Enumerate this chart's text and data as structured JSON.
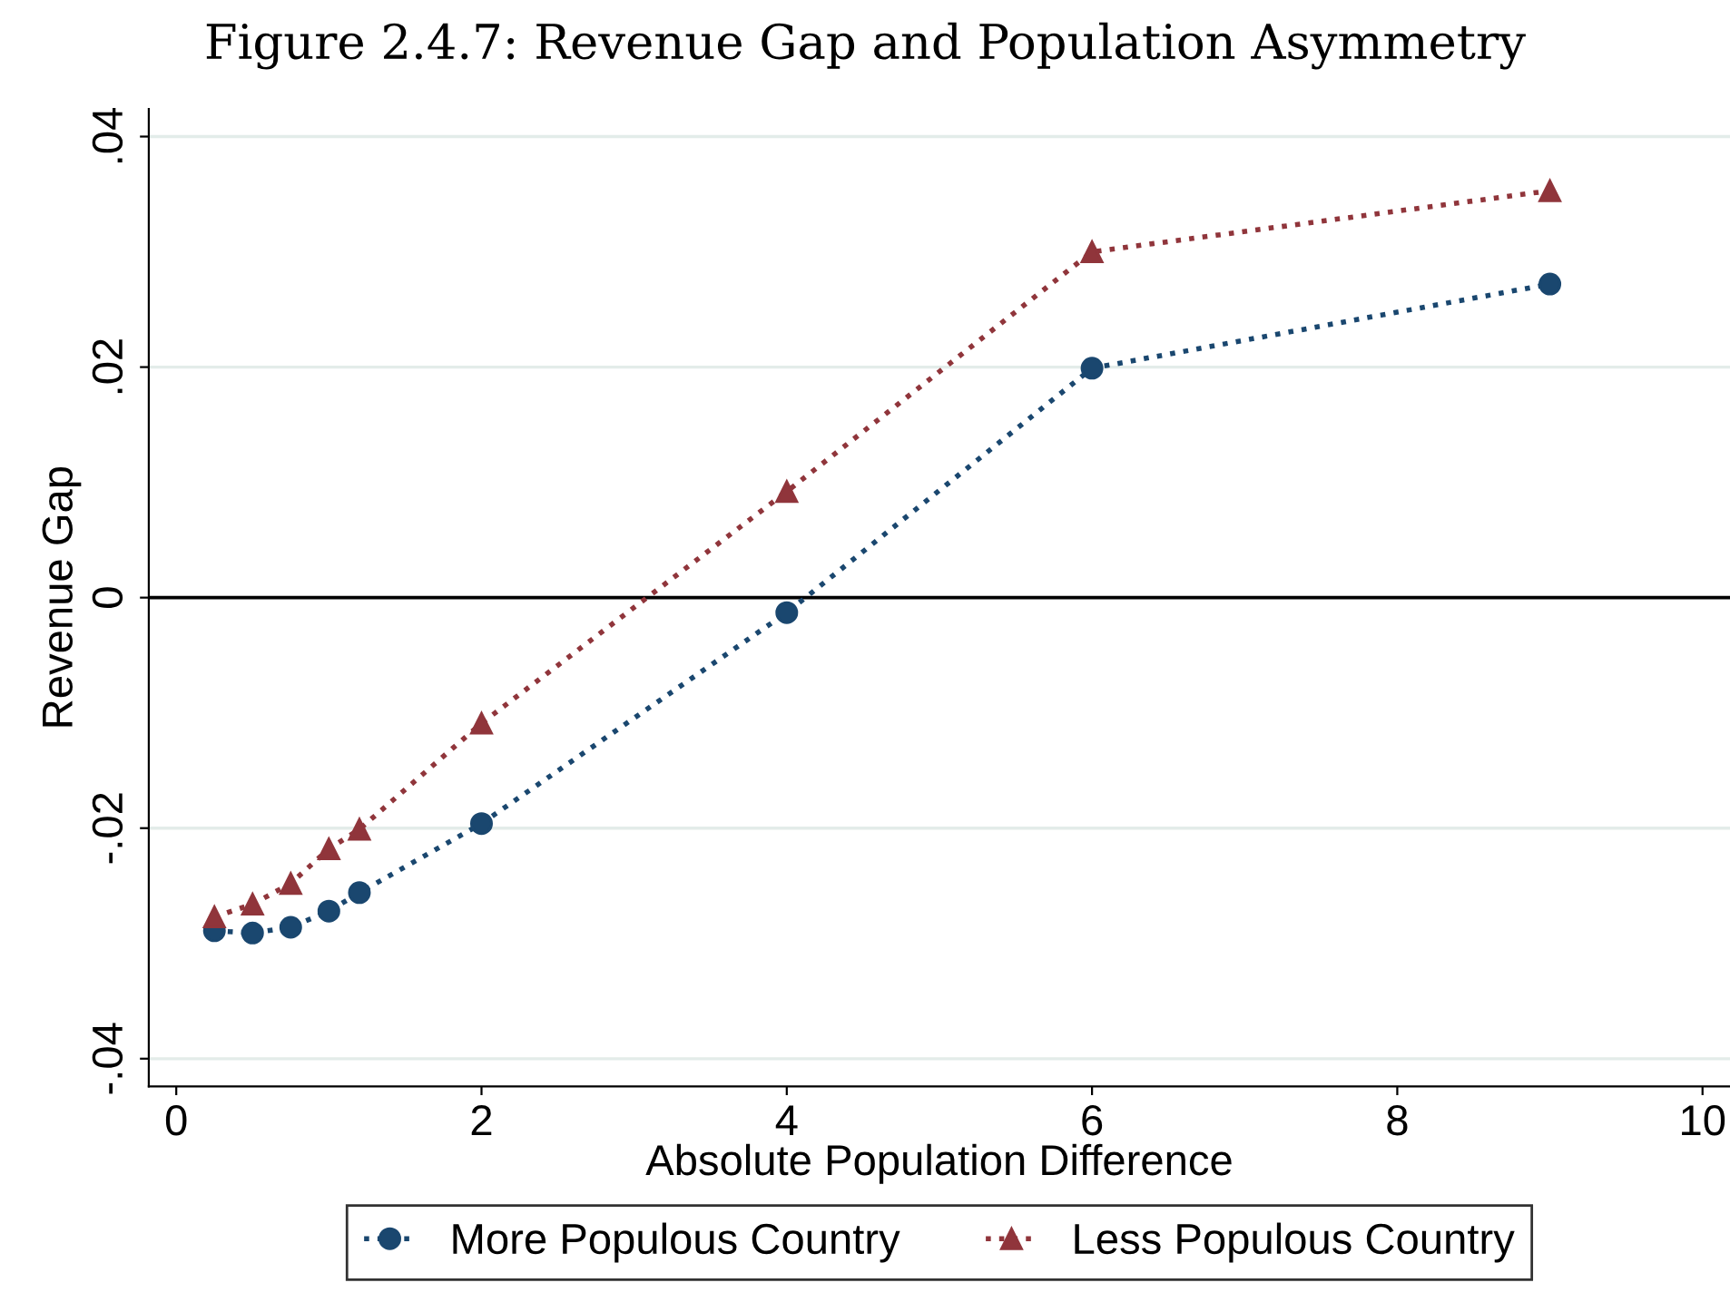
{
  "chart_data": {
    "type": "line",
    "title": "Figure 2.4.7: Revenue Gap and Population Asymmetry",
    "xlabel": "Absolute Population Difference",
    "ylabel": "Revenue Gap",
    "x": [
      0.25,
      0.5,
      0.75,
      1,
      1.2,
      2,
      4,
      6,
      9
    ],
    "series": [
      {
        "name": "More Populous Country",
        "color": "#1a476f",
        "marker": "circle",
        "values": [
          -0.0289,
          -0.0291,
          -0.0286,
          -0.0272,
          -0.0256,
          -0.0196,
          -0.0013,
          0.0199,
          0.0272
        ]
      },
      {
        "name": "Less Populous Country",
        "color": "#90353b",
        "marker": "triangle",
        "values": [
          -0.0277,
          -0.0266,
          -0.0248,
          -0.0218,
          -0.0201,
          -0.0109,
          0.0092,
          0.03,
          0.0353
        ]
      }
    ],
    "xlim": [
      -0.18,
      10.18
    ],
    "ylim": [
      -0.0424,
      0.0424
    ],
    "xticks": [
      0,
      2,
      4,
      6,
      8,
      10
    ],
    "yticks": [
      {
        "value": -0.04,
        "label": "-.04"
      },
      {
        "value": -0.02,
        "label": "-.02"
      },
      0,
      {
        "value": 0.02,
        "label": ".02"
      },
      {
        "value": 0.04,
        "label": ".04"
      }
    ],
    "ref_lines": [
      {
        "axis": "y",
        "value": 0,
        "label": null,
        "color": "#000000"
      }
    ],
    "grid": "y",
    "legend": "bottom",
    "line_style": "dotted"
  }
}
